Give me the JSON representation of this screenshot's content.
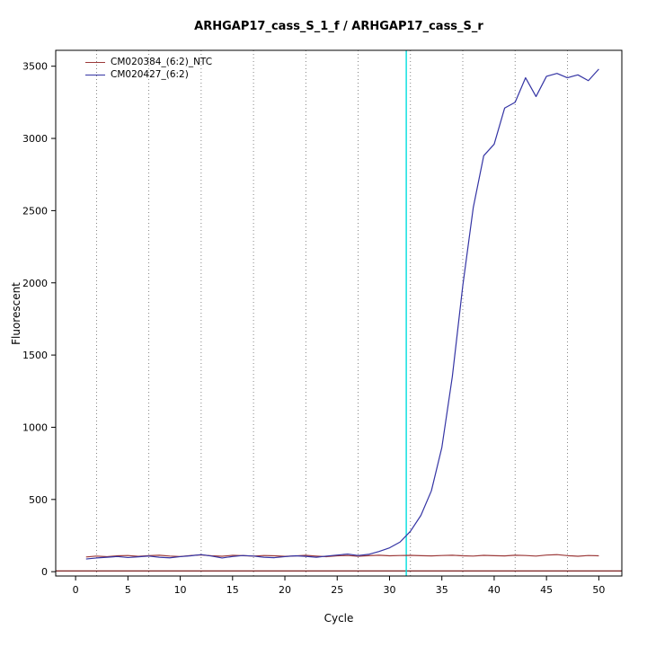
{
  "chart_data": {
    "type": "line",
    "title": "ARHGAP17_cass_S_1_f / ARHGAP17_cass_S_r",
    "xlabel": "Cycle",
    "ylabel": "Fluorescent",
    "xlim": [
      -1.9,
      52.2
    ],
    "ylim": [
      -30,
      3610
    ],
    "x_ticks": [
      0,
      5,
      10,
      15,
      20,
      25,
      30,
      35,
      40,
      45,
      50
    ],
    "y_ticks": [
      0,
      500,
      1000,
      1500,
      2000,
      2500,
      3000,
      3500
    ],
    "grid": "vertical-dotted",
    "grid_x_dotted": [
      2,
      7,
      12,
      17,
      22,
      27,
      32,
      37,
      42,
      47
    ],
    "grid_color": "#666666",
    "threshold_line": {
      "x": 31.6,
      "color": "#00dede"
    },
    "baseline": {
      "y": 5,
      "color": "#7a1f1f"
    },
    "legend_position": "top-left",
    "x": [
      1,
      2,
      3,
      4,
      5,
      6,
      7,
      8,
      9,
      10,
      11,
      12,
      13,
      14,
      15,
      16,
      17,
      18,
      19,
      20,
      21,
      22,
      23,
      24,
      25,
      26,
      27,
      28,
      29,
      30,
      31,
      32,
      33,
      34,
      35,
      36,
      37,
      38,
      39,
      40,
      41,
      42,
      43,
      44,
      45,
      46,
      47,
      48,
      49,
      50
    ],
    "series": [
      {
        "name": "CM020384_(6:2)_NTC",
        "color": "#9c3a3a",
        "values": [
          102,
          108,
          104,
          110,
          112,
          106,
          111,
          114,
          108,
          105,
          112,
          116,
          110,
          107,
          113,
          111,
          108,
          112,
          110,
          106,
          109,
          113,
          108,
          104,
          110,
          112,
          107,
          111,
          114,
          110,
          112,
          113,
          111,
          109,
          112,
          114,
          110,
          108,
          113,
          111,
          109,
          114,
          112,
          108,
          115,
          118,
          111,
          107,
          112,
          110
        ]
      },
      {
        "name": "CM020427_(6:2)",
        "color": "#3434a4",
        "values": [
          88,
          95,
          100,
          105,
          98,
          103,
          108,
          100,
          96,
          104,
          110,
          118,
          108,
          95,
          105,
          112,
          108,
          100,
          97,
          104,
          110,
          106,
          100,
          108,
          115,
          122,
          112,
          120,
          140,
          165,
          205,
          280,
          390,
          560,
          860,
          1350,
          1980,
          2520,
          2880,
          2960,
          3210,
          3250,
          3420,
          3290,
          3430,
          3450,
          3420,
          3440,
          3400,
          3480
        ]
      }
    ]
  }
}
